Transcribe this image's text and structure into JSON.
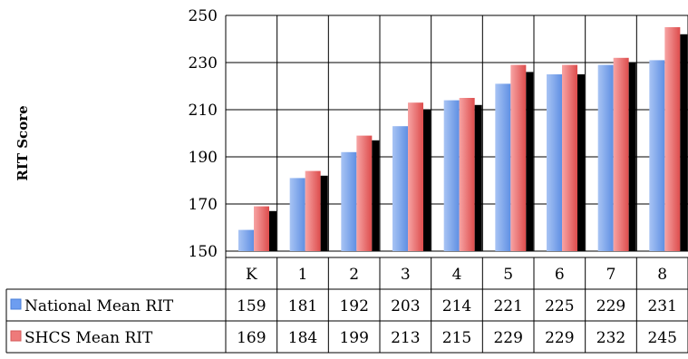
{
  "chart_data": {
    "type": "bar",
    "ylabel": "RIT Score",
    "categories": [
      "K",
      "1",
      "2",
      "3",
      "4",
      "5",
      "6",
      "7",
      "8"
    ],
    "ylim": [
      150,
      250
    ],
    "yticks": [
      150,
      170,
      190,
      210,
      230,
      250
    ],
    "grid": true,
    "legend": "data-table",
    "series": [
      {
        "name": "National Mean RIT",
        "values": [
          159,
          181,
          192,
          203,
          214,
          221,
          225,
          229,
          231
        ],
        "color": "#7aa6f0"
      },
      {
        "name": "SHCS Mean RIT",
        "values": [
          169,
          184,
          199,
          213,
          215,
          229,
          229,
          232,
          245
        ],
        "color": "#ee7a7a"
      },
      {
        "name": "",
        "values": [
          167,
          182,
          197,
          210,
          212,
          226,
          225,
          230,
          242
        ],
        "color": "#000000"
      }
    ]
  }
}
